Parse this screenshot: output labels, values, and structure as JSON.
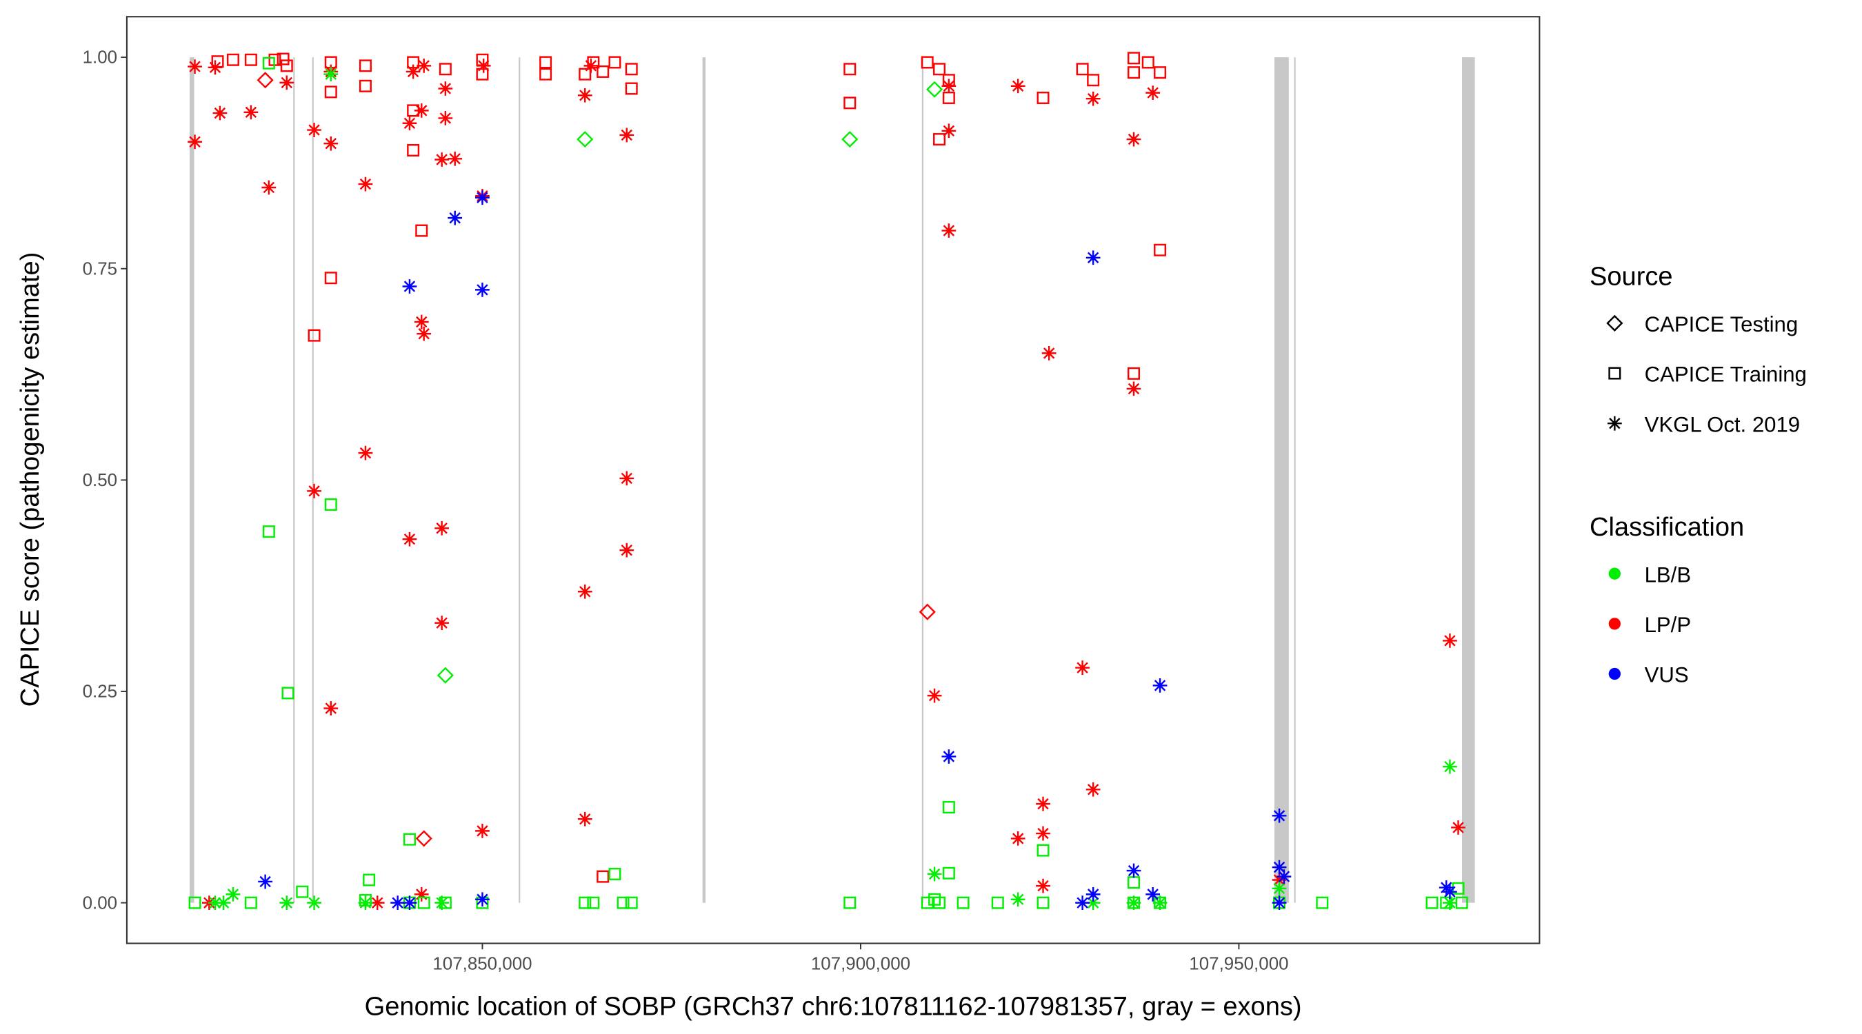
{
  "chart_data": {
    "type": "scatter",
    "xlabel": "Genomic location of SOBP (GRCh37 chr6:107811162-107981357, gray = exons)",
    "ylabel": "CAPICE score (pathogenicity estimate)",
    "xlim": [
      107803000,
      107989740
    ],
    "ylim": [
      -0.048,
      1.048
    ],
    "x_ticks": [
      107850000,
      107900000,
      107950000
    ],
    "x_tick_labels": [
      "107,850,000",
      "107,900,000",
      "107,950,000"
    ],
    "y_ticks": [
      0,
      0.25,
      0.5,
      0.75,
      1
    ],
    "y_tick_labels": [
      "0.00",
      "0.25",
      "0.50",
      "0.75",
      "1.00"
    ],
    "grid": false,
    "exons": [
      [
        107811300,
        107811900
      ],
      [
        107825000,
        107825200
      ],
      [
        107827500,
        107827700
      ],
      [
        107854800,
        107855000
      ],
      [
        107879100,
        107879500
      ],
      [
        107908100,
        107908300
      ],
      [
        107954700,
        107956600
      ],
      [
        107957300,
        107957500
      ],
      [
        107979500,
        107981200
      ]
    ],
    "legend": {
      "placement": "right",
      "source_title": "Source",
      "source_items": [
        {
          "key": "T",
          "label": "CAPICE Testing",
          "shape": "diamond"
        },
        {
          "key": "R",
          "label": "CAPICE Training",
          "shape": "square"
        },
        {
          "key": "V",
          "label": "VKGL Oct. 2019",
          "shape": "asterisk"
        }
      ],
      "class_title": "Classification",
      "class_items": [
        {
          "key": "B",
          "label": "LB/B",
          "color": "#00ee00"
        },
        {
          "key": "P",
          "label": "LP/P",
          "color": "#ff0000"
        },
        {
          "key": "U",
          "label": "VUS",
          "color": "#0000ff"
        }
      ]
    },
    "points_format": [
      "position",
      "score",
      "source",
      "classification"
    ],
    "points": [
      [
        107811994,
        0.989,
        "V",
        "P"
      ],
      [
        107811994,
        0.9,
        "V",
        "P"
      ],
      [
        107815306,
        0.934,
        "V",
        "P"
      ],
      [
        107814675,
        0.988,
        "V",
        "P"
      ],
      [
        107819406,
        0.935,
        "V",
        "P"
      ],
      [
        107821772,
        0.846,
        "V",
        "P"
      ],
      [
        107824137,
        0.97,
        "V",
        "P"
      ],
      [
        107827764,
        0.914,
        "V",
        "P"
      ],
      [
        107829972,
        0.898,
        "V",
        "P"
      ],
      [
        107829972,
        0.983,
        "V",
        "P"
      ],
      [
        107834545,
        0.85,
        "V",
        "P"
      ],
      [
        107834545,
        0.532,
        "V",
        "P"
      ],
      [
        107827764,
        0.487,
        "V",
        "P"
      ],
      [
        107829972,
        0.23,
        "V",
        "P"
      ],
      [
        107840380,
        0.43,
        "V",
        "P"
      ],
      [
        107844638,
        0.443,
        "V",
        "P"
      ],
      [
        107844638,
        0.331,
        "V",
        "P"
      ],
      [
        107840380,
        0.922,
        "V",
        "P"
      ],
      [
        107841957,
        0.937,
        "V",
        "P"
      ],
      [
        107840853,
        0.983,
        "V",
        "P"
      ],
      [
        107842273,
        0.99,
        "V",
        "P"
      ],
      [
        107845111,
        0.963,
        "V",
        "P"
      ],
      [
        107845111,
        0.928,
        "V",
        "P"
      ],
      [
        107844638,
        0.879,
        "V",
        "P"
      ],
      [
        107846373,
        0.88,
        "V",
        "P"
      ],
      [
        107850000,
        0.836,
        "V",
        "P"
      ],
      [
        107841957,
        0.687,
        "V",
        "P"
      ],
      [
        107842273,
        0.673,
        "V",
        "P"
      ],
      [
        107850000,
        0.085,
        "V",
        "P"
      ],
      [
        107841957,
        0.01,
        "V",
        "P"
      ],
      [
        107836122,
        0.0,
        "V",
        "P"
      ],
      [
        107813887,
        0.0,
        "V",
        "P"
      ],
      [
        107863562,
        0.955,
        "V",
        "P"
      ],
      [
        107863562,
        0.368,
        "V",
        "P"
      ],
      [
        107863562,
        0.099,
        "V",
        "P"
      ],
      [
        107869082,
        0.908,
        "V",
        "P"
      ],
      [
        107869082,
        0.502,
        "V",
        "P"
      ],
      [
        107869082,
        0.417,
        "V",
        "P"
      ],
      [
        107911661,
        0.966,
        "V",
        "P"
      ],
      [
        107911661,
        0.913,
        "V",
        "P"
      ],
      [
        107911661,
        0.795,
        "V",
        "P"
      ],
      [
        107909768,
        0.245,
        "V",
        "P"
      ],
      [
        107920807,
        0.966,
        "V",
        "P"
      ],
      [
        107924908,
        0.65,
        "V",
        "P"
      ],
      [
        107930742,
        0.951,
        "V",
        "P"
      ],
      [
        107930742,
        0.134,
        "V",
        "P"
      ],
      [
        107929323,
        0.278,
        "V",
        "P"
      ],
      [
        107936104,
        0.903,
        "V",
        "P"
      ],
      [
        107936104,
        0.608,
        "V",
        "P"
      ],
      [
        107938627,
        0.958,
        "V",
        "P"
      ],
      [
        107920807,
        0.076,
        "V",
        "P"
      ],
      [
        107924119,
        0.117,
        "V",
        "P"
      ],
      [
        107924119,
        0.082,
        "V",
        "P"
      ],
      [
        107924119,
        0.02,
        "V",
        "P"
      ],
      [
        107955344,
        0.027,
        "V",
        "P"
      ],
      [
        107977895,
        0.31,
        "V",
        "P"
      ],
      [
        107978999,
        0.089,
        "V",
        "P"
      ],
      [
        107850158,
        0.99,
        "V",
        "P"
      ],
      [
        107864351,
        0.99,
        "V",
        "P"
      ],
      [
        107815000,
        0.995,
        "R",
        "P"
      ],
      [
        107819406,
        0.997,
        "R",
        "P"
      ],
      [
        107823664,
        0.998,
        "R",
        "P"
      ],
      [
        107824137,
        0.99,
        "R",
        "P"
      ],
      [
        107829972,
        0.994,
        "R",
        "P"
      ],
      [
        107829972,
        0.959,
        "R",
        "P"
      ],
      [
        107834545,
        0.99,
        "R",
        "P"
      ],
      [
        107834545,
        0.966,
        "R",
        "P"
      ],
      [
        107840853,
        0.994,
        "R",
        "P"
      ],
      [
        107840853,
        0.937,
        "R",
        "P"
      ],
      [
        107840853,
        0.89,
        "R",
        "P"
      ],
      [
        107841957,
        0.795,
        "R",
        "P"
      ],
      [
        107829972,
        0.739,
        "R",
        "P"
      ],
      [
        107827764,
        0.671,
        "R",
        "P"
      ],
      [
        107845111,
        0.986,
        "R",
        "P"
      ],
      [
        107850000,
        0.997,
        "R",
        "P"
      ],
      [
        107850000,
        0.98,
        "R",
        "P"
      ],
      [
        107858358,
        0.994,
        "R",
        "P"
      ],
      [
        107858358,
        0.98,
        "R",
        "P"
      ],
      [
        107863562,
        0.98,
        "R",
        "P"
      ],
      [
        107864666,
        0.994,
        "R",
        "P"
      ],
      [
        107865928,
        0.983,
        "R",
        "P"
      ],
      [
        107867505,
        0.994,
        "R",
        "P"
      ],
      [
        107869713,
        0.986,
        "R",
        "P"
      ],
      [
        107869713,
        0.963,
        "R",
        "P"
      ],
      [
        107898572,
        0.986,
        "R",
        "P"
      ],
      [
        107898572,
        0.946,
        "R",
        "P"
      ],
      [
        107908822,
        0.994,
        "R",
        "P"
      ],
      [
        107910399,
        0.986,
        "R",
        "P"
      ],
      [
        107911661,
        0.973,
        "R",
        "P"
      ],
      [
        107911661,
        0.952,
        "R",
        "P"
      ],
      [
        107910399,
        0.903,
        "R",
        "P"
      ],
      [
        107924119,
        0.952,
        "R",
        "P"
      ],
      [
        107929323,
        0.986,
        "R",
        "P"
      ],
      [
        107930742,
        0.973,
        "R",
        "P"
      ],
      [
        107936104,
        0.999,
        "R",
        "P"
      ],
      [
        107937997,
        0.994,
        "R",
        "P"
      ],
      [
        107936104,
        0.982,
        "R",
        "P"
      ],
      [
        107939574,
        0.982,
        "R",
        "P"
      ],
      [
        107939574,
        0.772,
        "R",
        "P"
      ],
      [
        107936104,
        0.626,
        "R",
        "P"
      ],
      [
        107865928,
        0.031,
        "R",
        "P"
      ],
      [
        107817041,
        0.997,
        "R",
        "P"
      ],
      [
        107822560,
        0.997,
        "R",
        "P"
      ],
      [
        107821299,
        0.973,
        "T",
        "P"
      ],
      [
        107842273,
        0.076,
        "T",
        "P"
      ],
      [
        107908822,
        0.344,
        "T",
        "P"
      ],
      [
        107811994,
        0.0,
        "R",
        "B"
      ],
      [
        107819406,
        0.0,
        "R",
        "B"
      ],
      [
        107821772,
        0.439,
        "R",
        "B"
      ],
      [
        107824295,
        0.248,
        "R",
        "B"
      ],
      [
        107826187,
        0.013,
        "R",
        "B"
      ],
      [
        107829972,
        0.471,
        "R",
        "B"
      ],
      [
        107834545,
        0.003,
        "R",
        "B"
      ],
      [
        107835018,
        0.027,
        "R",
        "B"
      ],
      [
        107840380,
        0.075,
        "R",
        "B"
      ],
      [
        107840380,
        0.0,
        "R",
        "B"
      ],
      [
        107842273,
        0.0,
        "R",
        "B"
      ],
      [
        107845111,
        0.0,
        "R",
        "B"
      ],
      [
        107850000,
        0.0,
        "R",
        "B"
      ],
      [
        107863562,
        0.0,
        "R",
        "B"
      ],
      [
        107864666,
        0.0,
        "R",
        "B"
      ],
      [
        107867505,
        0.034,
        "R",
        "B"
      ],
      [
        107868609,
        0.0,
        "R",
        "B"
      ],
      [
        107869713,
        0.0,
        "R",
        "B"
      ],
      [
        107898572,
        0.0,
        "R",
        "B"
      ],
      [
        107908822,
        0.0,
        "R",
        "B"
      ],
      [
        107909768,
        0.004,
        "R",
        "B"
      ],
      [
        107910399,
        0.0,
        "R",
        "B"
      ],
      [
        107911661,
        0.113,
        "R",
        "B"
      ],
      [
        107911661,
        0.035,
        "R",
        "B"
      ],
      [
        107913553,
        0.0,
        "R",
        "B"
      ],
      [
        107918126,
        0.0,
        "R",
        "B"
      ],
      [
        107924119,
        0.062,
        "R",
        "B"
      ],
      [
        107924119,
        0.0,
        "R",
        "B"
      ],
      [
        107936104,
        0.024,
        "R",
        "B"
      ],
      [
        107936104,
        0.0,
        "R",
        "B"
      ],
      [
        107939574,
        0.0,
        "R",
        "B"
      ],
      [
        107955344,
        0.0,
        "R",
        "B"
      ],
      [
        107961021,
        0.0,
        "R",
        "B"
      ],
      [
        107975529,
        0.0,
        "R",
        "B"
      ],
      [
        107977422,
        0.0,
        "R",
        "B"
      ],
      [
        107978999,
        0.017,
        "R",
        "B"
      ],
      [
        107979472,
        0.0,
        "R",
        "B"
      ],
      [
        107821772,
        0.993,
        "R",
        "B"
      ],
      [
        107814675,
        0.0,
        "V",
        "B"
      ],
      [
        107817041,
        0.01,
        "V",
        "B"
      ],
      [
        107824137,
        0.0,
        "V",
        "B"
      ],
      [
        107827764,
        0.0,
        "V",
        "B"
      ],
      [
        107829972,
        0.98,
        "V",
        "B"
      ],
      [
        107834545,
        0.0,
        "V",
        "B"
      ],
      [
        107844638,
        0.0,
        "V",
        "B"
      ],
      [
        107909768,
        0.034,
        "V",
        "B"
      ],
      [
        107920807,
        0.004,
        "V",
        "B"
      ],
      [
        107930742,
        0.0,
        "V",
        "B"
      ],
      [
        107936104,
        0.0,
        "V",
        "B"
      ],
      [
        107939574,
        0.0,
        "V",
        "B"
      ],
      [
        107955344,
        0.017,
        "V",
        "B"
      ],
      [
        107977895,
        0.161,
        "V",
        "B"
      ],
      [
        107977895,
        0.0,
        "V",
        "B"
      ],
      [
        107815779,
        0.0,
        "V",
        "B"
      ],
      [
        107863562,
        0.903,
        "T",
        "B"
      ],
      [
        107898572,
        0.903,
        "T",
        "B"
      ],
      [
        107909768,
        0.962,
        "T",
        "B"
      ],
      [
        107845111,
        0.269,
        "T",
        "B"
      ],
      [
        107821299,
        0.025,
        "V",
        "U"
      ],
      [
        107838803,
        0.0,
        "V",
        "U"
      ],
      [
        107840380,
        0.0,
        "V",
        "U"
      ],
      [
        107846373,
        0.81,
        "V",
        "U"
      ],
      [
        107850000,
        0.834,
        "V",
        "U"
      ],
      [
        107850000,
        0.725,
        "V",
        "U"
      ],
      [
        107840380,
        0.729,
        "V",
        "U"
      ],
      [
        107850000,
        0.004,
        "V",
        "U"
      ],
      [
        107930742,
        0.763,
        "V",
        "U"
      ],
      [
        107911661,
        0.173,
        "V",
        "U"
      ],
      [
        107929323,
        0.0,
        "V",
        "U"
      ],
      [
        107930742,
        0.01,
        "V",
        "U"
      ],
      [
        107936104,
        0.038,
        "V",
        "U"
      ],
      [
        107938627,
        0.01,
        "V",
        "U"
      ],
      [
        107939574,
        0.257,
        "V",
        "U"
      ],
      [
        107955344,
        0.103,
        "V",
        "U"
      ],
      [
        107955344,
        0.042,
        "V",
        "U"
      ],
      [
        107955974,
        0.031,
        "V",
        "U"
      ],
      [
        107955344,
        0.0,
        "V",
        "U"
      ],
      [
        107977422,
        0.018,
        "V",
        "U"
      ],
      [
        107977895,
        0.013,
        "V",
        "U"
      ]
    ]
  }
}
